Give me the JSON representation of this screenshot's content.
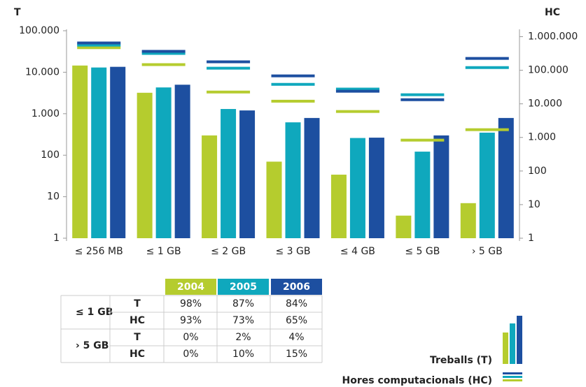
{
  "chart_data": {
    "type": "bar_line_log",
    "ylabel": "T",
    "y2label": "HC",
    "categories": [
      "≤ 256 MB",
      "≤ 1 GB",
      "≤ 2 GB",
      "≤ 3 GB",
      "≤ 4 GB",
      "≤ 5 GB",
      "› 5 GB"
    ],
    "log_scale": true,
    "ylim": [
      1,
      100000
    ],
    "yticks": [
      1,
      10,
      100,
      {
        "value": 1000,
        "label": "1.000"
      },
      {
        "value": 10000,
        "label": "10.000"
      },
      {
        "value": 100000,
        "label": "100.000"
      }
    ],
    "y2lim": [
      1,
      1500000
    ],
    "y2ticks": [
      1,
      10,
      100,
      {
        "value": 1000,
        "label": "1.000"
      },
      {
        "value": 10000,
        "label": "10.000"
      },
      {
        "value": 100000,
        "label": "100.000"
      },
      {
        "value": 1000000,
        "label": "1.000.000"
      }
    ],
    "series": [
      {
        "color": "#b5cc2e",
        "values": [
          14500,
          3200,
          300,
          70,
          34,
          3.5,
          7
        ]
      },
      {
        "color": "#0fa8bd",
        "values": [
          13000,
          4300,
          1300,
          620,
          260,
          122,
          350
        ]
      },
      {
        "color": "#1d4fa0",
        "values": [
          13500,
          5000,
          1200,
          790,
          265,
          300,
          790
        ]
      }
    ],
    "hc_series": [
      {
        "color": "#b5cc2e",
        "axis": "y2",
        "values": [
          470000,
          147000,
          22500,
          12000,
          5900,
          830,
          1700
        ]
      },
      {
        "color": "#0fa8bd",
        "axis": "y2",
        "values": [
          560000,
          316000,
          115000,
          38000,
          27500,
          18600,
          120000
        ]
      },
      {
        "color": "#1d4fa0",
        "axis": "y2",
        "values": [
          650000,
          365000,
          178000,
          68000,
          23700,
          13300,
          225000
        ]
      }
    ],
    "legend": [
      "Treballs (T)",
      "Hores computacionals (HC)"
    ]
  },
  "table": {
    "header": [
      "2004",
      "2005",
      "2006"
    ],
    "header_colors": [
      "#b5cc2e",
      "#0fa8bd",
      "#1d4fa0"
    ],
    "groups": [
      {
        "label": "≤ 1 GB",
        "rows": [
          {
            "label": "T",
            "cells": [
              "98%",
              "87%",
              "84%"
            ]
          },
          {
            "label": "HC",
            "cells": [
              "93%",
              "73%",
              "65%"
            ]
          }
        ]
      },
      {
        "label": "› 5 GB",
        "rows": [
          {
            "label": "T",
            "cells": [
              "0%",
              "2%",
              "4%"
            ]
          },
          {
            "label": "HC",
            "cells": [
              "0%",
              "10%",
              "15%"
            ]
          }
        ]
      }
    ]
  }
}
